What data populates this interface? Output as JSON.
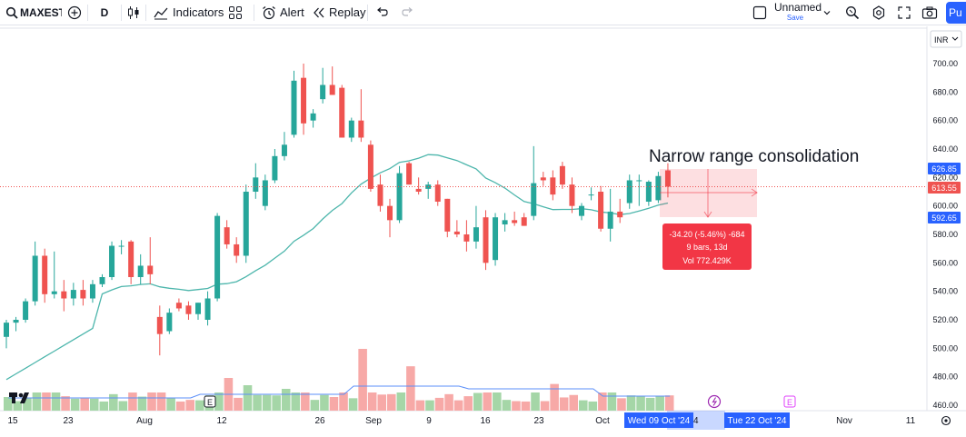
{
  "toolbar": {
    "symbol": "MAXESTA",
    "interval": "D",
    "indicators_label": "Indicators",
    "alert_label": "Alert",
    "replay_label": "Replay",
    "layout_name": "Unnamed",
    "layout_status": "Save",
    "publish_label": "Pu"
  },
  "price_axis": {
    "currency": "INR",
    "ticks": [
      "700.00",
      "680.00",
      "660.00",
      "640.00",
      "620.00",
      "600.00",
      "580.00",
      "560.00",
      "540.00",
      "520.00",
      "500.00",
      "480.00",
      "460.00"
    ],
    "labels": {
      "high": "626.85",
      "current": "613.55",
      "low": "592.65"
    }
  },
  "time_axis": {
    "ticks": [
      "15",
      "23",
      "Aug",
      "12",
      "26",
      "Sep",
      "9",
      "16",
      "23",
      "Oct",
      "Nov",
      "11"
    ],
    "highlight_start": "Wed 09 Oct '24",
    "highlight_end": "Tue 22 Oct '24",
    "partial_label": "4"
  },
  "annotation": {
    "text": "Narrow range consolidation"
  },
  "measure": {
    "line1": "-34.20 (-5.46%) -684",
    "line2": "9 bars, 13d",
    "line3": "Vol 772.429K"
  },
  "markers": {
    "earnings": "E"
  },
  "colors": {
    "up": "#26a69a",
    "down": "#ef5350",
    "ma": "#4db6ac",
    "vol_up": "#a5d6a7",
    "vol_down": "#f7a9a7",
    "vol_ma": "#5b8ff9",
    "measure_bg": "#f23645",
    "highlight": "#2962ff"
  },
  "chart_data": {
    "type": "candlestick",
    "timeframe": "D",
    "ylim": [
      455,
      705
    ],
    "candles": [
      {
        "o": 508,
        "h": 520,
        "l": 500,
        "c": 518
      },
      {
        "o": 518,
        "h": 522,
        "l": 512,
        "c": 520
      },
      {
        "o": 520,
        "h": 535,
        "l": 518,
        "c": 533
      },
      {
        "o": 533,
        "h": 575,
        "l": 530,
        "c": 565
      },
      {
        "o": 565,
        "h": 570,
        "l": 532,
        "c": 538
      },
      {
        "o": 538,
        "h": 568,
        "l": 535,
        "c": 540
      },
      {
        "o": 540,
        "h": 548,
        "l": 526,
        "c": 535
      },
      {
        "o": 535,
        "h": 546,
        "l": 530,
        "c": 541
      },
      {
        "o": 541,
        "h": 548,
        "l": 530,
        "c": 535
      },
      {
        "o": 535,
        "h": 548,
        "l": 532,
        "c": 545
      },
      {
        "o": 545,
        "h": 552,
        "l": 543,
        "c": 550
      },
      {
        "o": 550,
        "h": 575,
        "l": 548,
        "c": 572
      },
      {
        "o": 572,
        "h": 576,
        "l": 566,
        "c": 572
      },
      {
        "o": 575,
        "h": 576,
        "l": 545,
        "c": 550
      },
      {
        "o": 550,
        "h": 566,
        "l": 545,
        "c": 558
      },
      {
        "o": 558,
        "h": 578,
        "l": 545,
        "c": 552
      },
      {
        "o": 522,
        "h": 530,
        "l": 495,
        "c": 510
      },
      {
        "o": 512,
        "h": 528,
        "l": 510,
        "c": 525
      },
      {
        "o": 532,
        "h": 535,
        "l": 526,
        "c": 528
      },
      {
        "o": 530,
        "h": 533,
        "l": 520,
        "c": 524
      },
      {
        "o": 524,
        "h": 532,
        "l": 520,
        "c": 532
      },
      {
        "o": 520,
        "h": 540,
        "l": 516,
        "c": 535
      },
      {
        "o": 535,
        "h": 595,
        "l": 533,
        "c": 593
      },
      {
        "o": 585,
        "h": 590,
        "l": 570,
        "c": 573
      },
      {
        "o": 573,
        "h": 578,
        "l": 560,
        "c": 565
      },
      {
        "o": 565,
        "h": 615,
        "l": 560,
        "c": 610
      },
      {
        "o": 610,
        "h": 630,
        "l": 605,
        "c": 620
      },
      {
        "o": 600,
        "h": 622,
        "l": 597,
        "c": 618
      },
      {
        "o": 618,
        "h": 640,
        "l": 616,
        "c": 635
      },
      {
        "o": 635,
        "h": 652,
        "l": 632,
        "c": 643
      },
      {
        "o": 650,
        "h": 695,
        "l": 648,
        "c": 688
      },
      {
        "o": 690,
        "h": 700,
        "l": 650,
        "c": 658
      },
      {
        "o": 660,
        "h": 668,
        "l": 655,
        "c": 665
      },
      {
        "o": 675,
        "h": 697,
        "l": 672,
        "c": 685
      },
      {
        "o": 685,
        "h": 698,
        "l": 678,
        "c": 678
      },
      {
        "o": 683,
        "h": 685,
        "l": 648,
        "c": 648
      },
      {
        "o": 648,
        "h": 662,
        "l": 645,
        "c": 660
      },
      {
        "o": 660,
        "h": 682,
        "l": 645,
        "c": 648
      },
      {
        "o": 643,
        "h": 646,
        "l": 610,
        "c": 612
      },
      {
        "o": 615,
        "h": 622,
        "l": 596,
        "c": 600
      },
      {
        "o": 600,
        "h": 605,
        "l": 578,
        "c": 590
      },
      {
        "o": 590,
        "h": 628,
        "l": 588,
        "c": 623
      },
      {
        "o": 630,
        "h": 631,
        "l": 615,
        "c": 615
      },
      {
        "o": 612,
        "h": 620,
        "l": 608,
        "c": 610
      },
      {
        "o": 612,
        "h": 617,
        "l": 605,
        "c": 615
      },
      {
        "o": 615,
        "h": 618,
        "l": 600,
        "c": 603
      },
      {
        "o": 605,
        "h": 605,
        "l": 578,
        "c": 582
      },
      {
        "o": 582,
        "h": 590,
        "l": 578,
        "c": 580
      },
      {
        "o": 580,
        "h": 590,
        "l": 568,
        "c": 575
      },
      {
        "o": 575,
        "h": 600,
        "l": 570,
        "c": 585
      },
      {
        "o": 592,
        "h": 597,
        "l": 555,
        "c": 560
      },
      {
        "o": 562,
        "h": 595,
        "l": 558,
        "c": 592
      },
      {
        "o": 587,
        "h": 595,
        "l": 582,
        "c": 590
      },
      {
        "o": 590,
        "h": 596,
        "l": 586,
        "c": 588
      },
      {
        "o": 592,
        "h": 595,
        "l": 586,
        "c": 586
      },
      {
        "o": 593,
        "h": 642,
        "l": 590,
        "c": 616
      },
      {
        "o": 620,
        "h": 624,
        "l": 614,
        "c": 618
      },
      {
        "o": 620,
        "h": 625,
        "l": 604,
        "c": 608
      },
      {
        "o": 628,
        "h": 631,
        "l": 612,
        "c": 615
      },
      {
        "o": 615,
        "h": 620,
        "l": 595,
        "c": 600
      },
      {
        "o": 593,
        "h": 602,
        "l": 590,
        "c": 600
      },
      {
        "o": 608,
        "h": 613,
        "l": 604,
        "c": 608
      },
      {
        "o": 610,
        "h": 614,
        "l": 582,
        "c": 584
      },
      {
        "o": 584,
        "h": 612,
        "l": 575,
        "c": 596
      },
      {
        "o": 596,
        "h": 605,
        "l": 588,
        "c": 592
      },
      {
        "o": 602,
        "h": 622,
        "l": 598,
        "c": 618
      },
      {
        "o": 618,
        "h": 622,
        "l": 600,
        "c": 618
      },
      {
        "o": 603,
        "h": 618,
        "l": 600,
        "c": 617
      },
      {
        "o": 604,
        "h": 624,
        "l": 602,
        "c": 621
      },
      {
        "o": 625,
        "h": 630,
        "l": 606,
        "c": 613.55
      }
    ],
    "volume_visible": true,
    "moving_average": true
  }
}
